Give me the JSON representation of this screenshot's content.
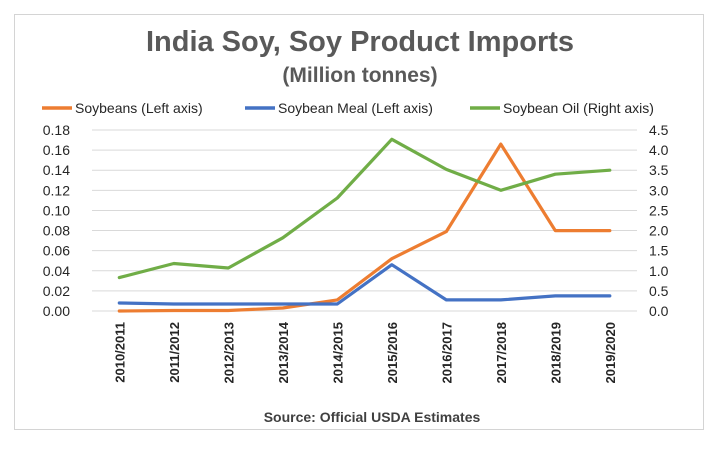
{
  "chart_data": {
    "type": "line",
    "title": "India Soy, Soy Product Imports",
    "subtitle": "(Million tonnes)",
    "source": "Source: Official USDA Estimates",
    "categories": [
      "2010/2011",
      "2011/2012",
      "2012/2013",
      "2013/2014",
      "2014/2015",
      "2015/2016",
      "2016/2017",
      "2017/2018",
      "2018/2019",
      "2019/2020"
    ],
    "y_left": {
      "ylim": [
        0,
        0.18
      ],
      "ticks": [
        "0.00",
        "0.02",
        "0.04",
        "0.06",
        "0.08",
        "0.10",
        "0.12",
        "0.14",
        "0.16",
        "0.18"
      ]
    },
    "y_right": {
      "ylim": [
        0,
        4.5
      ],
      "ticks": [
        "0.0",
        "0.5",
        "1.0",
        "1.5",
        "2.0",
        "2.5",
        "3.0",
        "3.5",
        "4.0",
        "4.5"
      ]
    },
    "legend_position": "top",
    "grid": "horizontal",
    "series": [
      {
        "name": "Soybeans (Left axis)",
        "axis": "left",
        "color": "#ed7d31",
        "values": [
          0.0,
          0.0005,
          0.0005,
          0.003,
          0.011,
          0.052,
          0.079,
          0.166,
          0.08,
          0.08
        ]
      },
      {
        "name": "Soybean Meal (Left axis)",
        "axis": "left",
        "color": "#4472c4",
        "values": [
          0.008,
          0.007,
          0.007,
          0.007,
          0.007,
          0.046,
          0.011,
          0.011,
          0.015,
          0.015
        ]
      },
      {
        "name": "Soybean Oil (Right axis)",
        "axis": "right",
        "color": "#70ad47",
        "values": [
          0.83,
          1.18,
          1.07,
          1.82,
          2.81,
          4.27,
          3.52,
          3.0,
          3.4,
          3.5
        ]
      }
    ]
  }
}
